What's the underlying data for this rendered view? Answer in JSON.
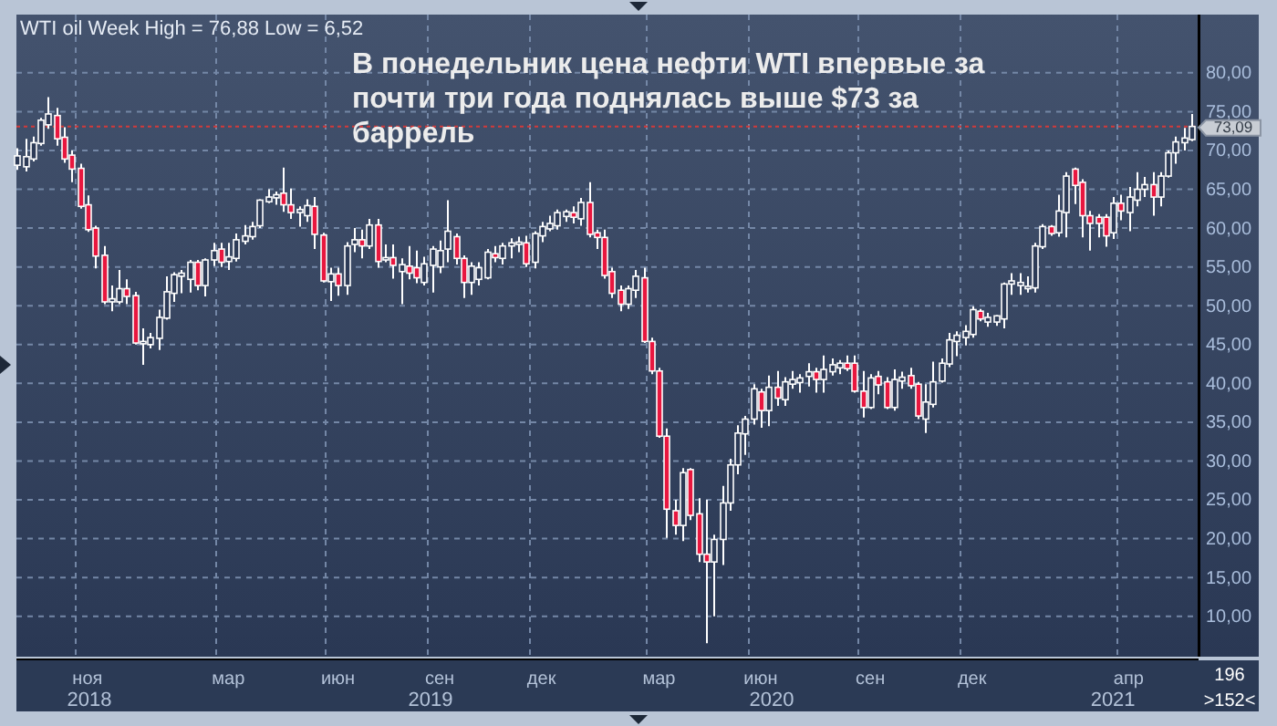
{
  "chart_data": {
    "type": "candlestick",
    "title": "В понедельник цена нефти WTI впервые за почти три года поднялась выше $73 за баррель",
    "subtitle": "WTI oil Week High = 76,88 Low = 6,52",
    "annotations": [
      "196",
      ">152<"
    ],
    "categories": [
      null,
      null,
      null,
      null,
      null,
      null,
      null,
      null,
      null,
      "ноя",
      null,
      null,
      null,
      null,
      null,
      null,
      null,
      null,
      null,
      null,
      null,
      null,
      null,
      null,
      null,
      null,
      null,
      "мар",
      null,
      null,
      null,
      null,
      null,
      null,
      null,
      null,
      null,
      null,
      null,
      null,
      null,
      "июн",
      null,
      null,
      null,
      null,
      null,
      null,
      null,
      null,
      null,
      null,
      null,
      null,
      "сен",
      null,
      null,
      null,
      null,
      null,
      null,
      null,
      null,
      null,
      null,
      null,
      null,
      "дек",
      null,
      null,
      null,
      null,
      null,
      null,
      null,
      null,
      null,
      null,
      null,
      null,
      null,
      null,
      "мар",
      null,
      null,
      null,
      null,
      null,
      null,
      null,
      null,
      null,
      null,
      null,
      null,
      "июн",
      null,
      null,
      null,
      null,
      null,
      null,
      null,
      null,
      null,
      null,
      null,
      null,
      null,
      "сен",
      null,
      null,
      null,
      null,
      null,
      null,
      null,
      null,
      null,
      null,
      null,
      null,
      "дек",
      null,
      null,
      null,
      null,
      null,
      null,
      null,
      null,
      null,
      null,
      null,
      null,
      null,
      null,
      null,
      null,
      null,
      null,
      null,
      "апр",
      null,
      null,
      null,
      null,
      null,
      null,
      null,
      null
    ],
    "ohlc": [
      [
        68.1,
        70.3,
        67.5,
        69.3
      ],
      [
        67.9,
        71.5,
        67.3,
        69.2
      ],
      [
        68.9,
        71.8,
        68.6,
        71.0
      ],
      [
        70.9,
        74.2,
        70.6,
        73.9
      ],
      [
        73.3,
        76.88,
        72.8,
        74.7
      ],
      [
        74.5,
        75.5,
        70.6,
        71.5
      ],
      [
        71.7,
        73.0,
        68.4,
        68.9
      ],
      [
        69.4,
        70.0,
        65.9,
        67.6
      ],
      [
        67.7,
        68.3,
        62.5,
        62.8
      ],
      [
        63.0,
        64.2,
        59.5,
        59.8
      ],
      [
        60.0,
        60.3,
        54.8,
        56.4
      ],
      [
        56.5,
        57.7,
        50.2,
        50.5
      ],
      [
        50.5,
        52.6,
        49.3,
        50.9
      ],
      [
        50.5,
        54.6,
        50.2,
        52.2
      ],
      [
        52.2,
        53.4,
        50.2,
        51.2
      ],
      [
        51.3,
        51.8,
        45.0,
        45.2
      ],
      [
        45.1,
        47.1,
        42.4,
        45.4
      ],
      [
        45.0,
        46.5,
        44.5,
        45.9
      ],
      [
        45.8,
        49.5,
        44.3,
        48.5
      ],
      [
        48.4,
        53.8,
        48.2,
        51.8
      ],
      [
        51.6,
        54.3,
        50.5,
        54.0
      ],
      [
        53.8,
        54.6,
        51.6,
        54.2
      ],
      [
        53.4,
        55.9,
        51.7,
        55.6
      ],
      [
        55.6,
        55.9,
        52.0,
        52.6
      ],
      [
        52.6,
        56.1,
        51.2,
        55.9
      ],
      [
        55.9,
        58.1,
        55.1,
        57.1
      ],
      [
        57.3,
        58.1,
        55.0,
        55.6
      ],
      [
        55.7,
        58.1,
        54.6,
        56.3
      ],
      [
        56.1,
        59.3,
        55.7,
        58.5
      ],
      [
        58.3,
        60.4,
        57.9,
        59.0
      ],
      [
        58.9,
        60.8,
        58.5,
        60.2
      ],
      [
        60.3,
        63.7,
        60.0,
        63.6
      ],
      [
        63.4,
        65.0,
        63.2,
        64.0
      ],
      [
        63.9,
        64.7,
        63.0,
        64.3
      ],
      [
        64.5,
        67.8,
        62.1,
        63.0
      ],
      [
        63.0,
        65.1,
        61.2,
        62.0
      ],
      [
        62.0,
        62.8,
        60.2,
        62.4
      ],
      [
        61.6,
        63.7,
        60.8,
        62.9
      ],
      [
        62.8,
        64.0,
        57.3,
        59.2
      ],
      [
        59.1,
        59.4,
        53.0,
        53.2
      ],
      [
        53.1,
        54.9,
        50.6,
        54.1
      ],
      [
        54.1,
        54.9,
        51.3,
        52.6
      ],
      [
        52.6,
        58.2,
        51.4,
        57.7
      ],
      [
        57.9,
        60.0,
        56.9,
        58.5
      ],
      [
        58.5,
        59.8,
        56.1,
        57.7
      ],
      [
        57.7,
        61.2,
        57.3,
        60.4
      ],
      [
        60.4,
        61.2,
        54.9,
        55.7
      ],
      [
        55.9,
        57.9,
        55.6,
        56.2
      ],
      [
        56.2,
        57.9,
        53.5,
        55.2
      ],
      [
        54.4,
        56.1,
        50.2,
        55.3
      ],
      [
        55.1,
        57.7,
        53.4,
        54.2
      ],
      [
        54.9,
        57.1,
        52.9,
        53.6
      ],
      [
        53.0,
        56.3,
        52.6,
        55.4
      ],
      [
        55.2,
        57.7,
        51.7,
        57.3
      ],
      [
        55.0,
        58.4,
        54.2,
        57.1
      ],
      [
        57.3,
        63.6,
        55.6,
        59.6
      ],
      [
        58.9,
        59.3,
        55.3,
        56.1
      ],
      [
        56.1,
        56.5,
        51.0,
        53.0
      ],
      [
        53.0,
        55.6,
        51.4,
        55.1
      ],
      [
        53.4,
        55.6,
        52.6,
        54.9
      ],
      [
        53.6,
        57.3,
        53.4,
        56.9
      ],
      [
        56.7,
        57.7,
        55.6,
        56.2
      ],
      [
        56.1,
        58.1,
        55.3,
        57.7
      ],
      [
        57.7,
        58.7,
        56.1,
        58.1
      ],
      [
        57.9,
        58.9,
        56.9,
        58.2
      ],
      [
        58.1,
        59.0,
        55.0,
        55.4
      ],
      [
        55.6,
        59.6,
        54.8,
        59.3
      ],
      [
        59.0,
        60.8,
        58.2,
        60.2
      ],
      [
        59.9,
        61.6,
        59.6,
        60.6
      ],
      [
        60.3,
        62.4,
        59.8,
        62.0
      ],
      [
        61.5,
        62.4,
        60.8,
        62.1
      ],
      [
        62.0,
        62.8,
        60.6,
        61.4
      ],
      [
        61.2,
        63.9,
        60.3,
        63.3
      ],
      [
        63.3,
        65.9,
        58.8,
        59.2
      ],
      [
        59.4,
        59.8,
        57.3,
        58.8
      ],
      [
        58.8,
        59.8,
        53.5,
        53.9
      ],
      [
        54.4,
        54.9,
        51.0,
        51.6
      ],
      [
        52.0,
        52.6,
        49.3,
        50.2
      ],
      [
        50.2,
        52.6,
        49.6,
        52.2
      ],
      [
        52.0,
        54.6,
        51.0,
        53.8
      ],
      [
        53.6,
        54.9,
        45.2,
        45.4
      ],
      [
        45.4,
        45.9,
        41.2,
        41.6
      ],
      [
        41.6,
        42.0,
        33.0,
        33.2
      ],
      [
        33.2,
        34.2,
        20.1,
        23.8
      ],
      [
        23.6,
        25.0,
        20.5,
        21.7
      ],
      [
        21.7,
        29.1,
        19.7,
        28.5
      ],
      [
        28.9,
        29.1,
        22.4,
        23.0
      ],
      [
        23.2,
        25.2,
        17.0,
        18.0
      ],
      [
        18.0,
        25.0,
        6.52,
        17.0
      ],
      [
        17.0,
        20.5,
        10.0,
        19.9
      ],
      [
        19.9,
        26.8,
        16.6,
        24.6
      ],
      [
        24.6,
        30.3,
        23.6,
        29.5
      ],
      [
        29.5,
        34.6,
        28.3,
        33.6
      ],
      [
        33.5,
        35.8,
        30.8,
        35.4
      ],
      [
        35.4,
        39.9,
        34.7,
        39.3
      ],
      [
        38.9,
        39.3,
        34.3,
        36.5
      ],
      [
        36.5,
        41.0,
        34.5,
        39.5
      ],
      [
        39.5,
        41.6,
        37.1,
        38.1
      ],
      [
        37.9,
        40.8,
        37.1,
        40.2
      ],
      [
        39.9,
        41.6,
        39.3,
        40.5
      ],
      [
        40.1,
        41.2,
        38.8,
        40.7
      ],
      [
        40.9,
        42.6,
        39.6,
        41.5
      ],
      [
        41.5,
        42.0,
        38.8,
        40.5
      ],
      [
        40.5,
        43.6,
        38.8,
        41.8
      ],
      [
        41.5,
        43.2,
        41.0,
        42.4
      ],
      [
        42.0,
        43.0,
        41.2,
        42.6
      ],
      [
        42.6,
        43.6,
        41.6,
        41.9
      ],
      [
        42.6,
        43.6,
        38.8,
        39.0
      ],
      [
        39.0,
        41.6,
        35.6,
        36.9
      ],
      [
        36.9,
        41.2,
        36.7,
        40.7
      ],
      [
        40.9,
        41.6,
        38.6,
        39.8
      ],
      [
        40.2,
        40.8,
        36.7,
        36.9
      ],
      [
        36.9,
        41.8,
        36.5,
        40.5
      ],
      [
        40.3,
        41.5,
        39.3,
        40.8
      ],
      [
        41.0,
        42.0,
        39.3,
        39.7
      ],
      [
        39.9,
        40.2,
        35.4,
        35.8
      ],
      [
        35.4,
        39.9,
        33.6,
        37.6
      ],
      [
        37.3,
        42.8,
        36.9,
        40.2
      ],
      [
        40.3,
        43.2,
        40.1,
        42.6
      ],
      [
        42.5,
        46.5,
        42.1,
        45.6
      ],
      [
        45.4,
        46.7,
        43.5,
        46.2
      ],
      [
        45.9,
        47.5,
        44.9,
        46.7
      ],
      [
        46.3,
        49.9,
        45.9,
        49.5
      ],
      [
        49.3,
        49.6,
        48.0,
        48.3
      ],
      [
        47.9,
        49.1,
        47.3,
        48.5
      ],
      [
        47.9,
        48.8,
        47.4,
        48.7
      ],
      [
        48.3,
        53.0,
        47.1,
        52.8
      ],
      [
        52.8,
        54.2,
        51.4,
        53.2
      ],
      [
        52.6,
        54.2,
        51.4,
        53.0
      ],
      [
        52.2,
        53.8,
        51.7,
        52.5
      ],
      [
        52.3,
        58.1,
        51.7,
        57.7
      ],
      [
        57.6,
        60.5,
        57.3,
        60.2
      ],
      [
        60.2,
        60.4,
        59.0,
        59.3
      ],
      [
        59.4,
        64.3,
        58.9,
        62.2
      ],
      [
        62.0,
        67.2,
        58.8,
        66.7
      ],
      [
        67.6,
        67.8,
        63.1,
        65.5
      ],
      [
        65.9,
        66.3,
        58.8,
        61.6
      ],
      [
        61.6,
        62.2,
        57.1,
        60.6
      ],
      [
        61.4,
        61.8,
        58.8,
        60.6
      ],
      [
        61.4,
        61.8,
        57.6,
        59.0
      ],
      [
        59.4,
        64.0,
        58.6,
        63.2
      ],
      [
        63.2,
        64.3,
        61.0,
        62.2
      ],
      [
        62.0,
        65.3,
        59.6,
        64.0
      ],
      [
        63.6,
        67.2,
        62.8,
        65.0
      ],
      [
        65.0,
        66.6,
        64.0,
        65.6
      ],
      [
        65.6,
        67.2,
        61.6,
        64.0
      ],
      [
        64.0,
        67.2,
        62.8,
        66.7
      ],
      [
        66.7,
        70.0,
        66.5,
        69.7
      ],
      [
        69.7,
        71.8,
        68.3,
        71.1
      ],
      [
        71.0,
        72.9,
        70.0,
        71.6
      ],
      [
        71.4,
        74.7,
        71.2,
        73.09
      ]
    ],
    "x2lim": [
      2017.786,
      2021.251
    ],
    "x2ticks": [
      2018,
      2019,
      2020,
      2021
    ],
    "ylim": [
      4.8,
      87.5
    ],
    "yticks": [
      {
        "value": 10,
        "label": "10,00"
      },
      {
        "value": 15,
        "label": "15,00"
      },
      {
        "value": 20,
        "label": "20,00"
      },
      {
        "value": 25,
        "label": "25,00"
      },
      {
        "value": 30,
        "label": "30,00"
      },
      {
        "value": 35,
        "label": "35,00"
      },
      {
        "value": 40,
        "label": "40,00"
      },
      {
        "value": 45,
        "label": "45,00"
      },
      {
        "value": 50,
        "label": "50,00"
      },
      {
        "value": 55,
        "label": "55,00"
      },
      {
        "value": 60,
        "label": "60,00"
      },
      {
        "value": 65,
        "label": "65,00"
      },
      {
        "value": 70,
        "label": "70,00"
      },
      {
        "value": 75,
        "label": "75,00"
      },
      {
        "value": 80,
        "label": "80,00"
      }
    ],
    "ref_lines": [
      {
        "axis": "y",
        "value": 73.09,
        "label": "73,09",
        "color": "#d23a3a",
        "line_style": "dotted"
      }
    ],
    "grid": true
  }
}
